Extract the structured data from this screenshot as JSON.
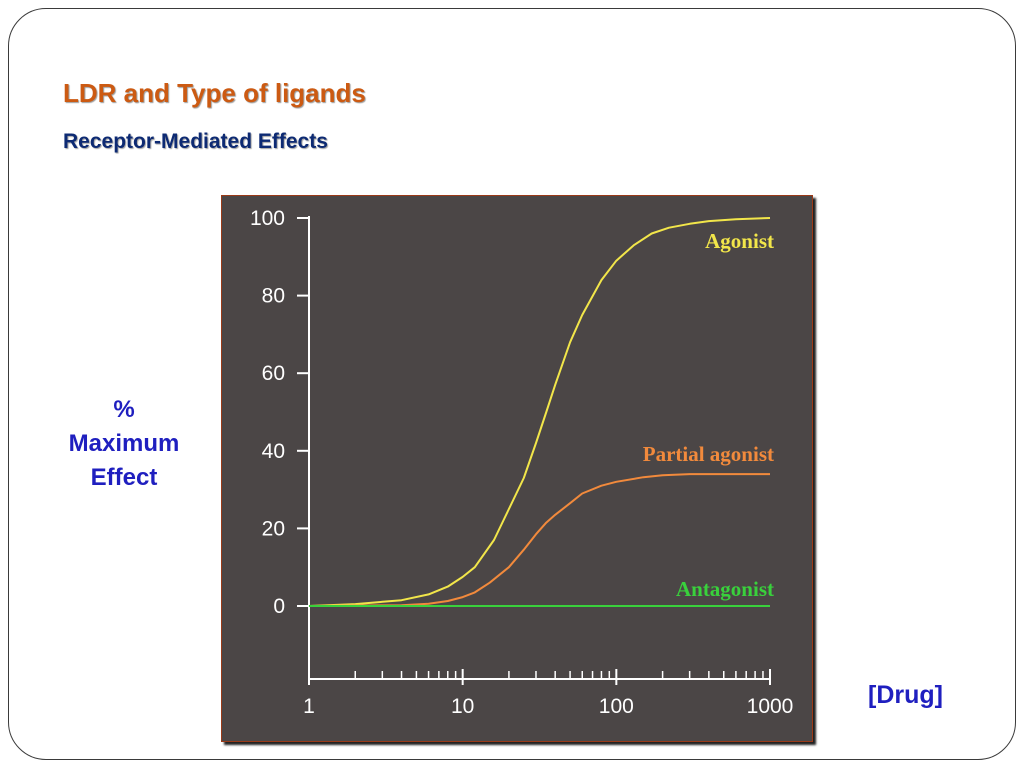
{
  "slide": {
    "title": "LDR and Type of ligands",
    "subtitle": "Receptor-Mediated Effects",
    "ylabel_lines": [
      "%",
      "Maximum",
      "Effect"
    ],
    "xlabel": "[Drug]"
  },
  "chart_data": {
    "type": "line",
    "title": "",
    "xlabel": "[Drug]",
    "ylabel": "% Maximum Effect",
    "x_scale": "log",
    "xlim": [
      1,
      1000
    ],
    "ylim": [
      -18,
      100
    ],
    "x_ticks": [
      1,
      10,
      100,
      1000
    ],
    "x_tick_labels": [
      "1",
      "10",
      "100",
      "1000"
    ],
    "y_ticks": [
      0,
      20,
      40,
      60,
      80,
      100
    ],
    "y_tick_labels": [
      "0",
      "20",
      "40",
      "60",
      "80",
      "100"
    ],
    "grid": false,
    "legend": "inline labels at right end of each curve",
    "colors": {
      "background": "#4b4646",
      "axis": "#ffffff",
      "agonist": "#f2e64a",
      "partial_agonist": "#f28a3c",
      "antagonist": "#39d13c"
    },
    "series": [
      {
        "name": "Agonist",
        "color": "#f2e64a",
        "x": [
          1,
          2,
          4,
          6,
          8,
          10,
          12,
          16,
          20,
          25,
          30,
          35,
          40,
          50,
          60,
          80,
          100,
          130,
          170,
          220,
          300,
          400,
          600,
          1000
        ],
        "y": [
          0,
          0.5,
          1.5,
          3,
          5,
          7.5,
          10,
          17,
          25,
          33,
          42,
          50,
          57,
          68,
          75,
          84,
          89,
          93,
          96,
          97.5,
          98.5,
          99.2,
          99.7,
          100
        ]
      },
      {
        "name": "Partial agonist",
        "color": "#f28a3c",
        "x": [
          1,
          4,
          6,
          8,
          10,
          12,
          15,
          20,
          25,
          30,
          35,
          40,
          50,
          60,
          80,
          100,
          150,
          200,
          300,
          500,
          1000
        ],
        "y": [
          0,
          0.2,
          0.6,
          1.3,
          2.3,
          3.5,
          6,
          10,
          14.5,
          18.5,
          21.5,
          23.5,
          26.5,
          29,
          31,
          32,
          33.2,
          33.7,
          34,
          34,
          34
        ]
      },
      {
        "name": "Antagonist",
        "color": "#39d13c",
        "x": [
          1,
          1000
        ],
        "y": [
          0,
          0
        ]
      }
    ]
  }
}
